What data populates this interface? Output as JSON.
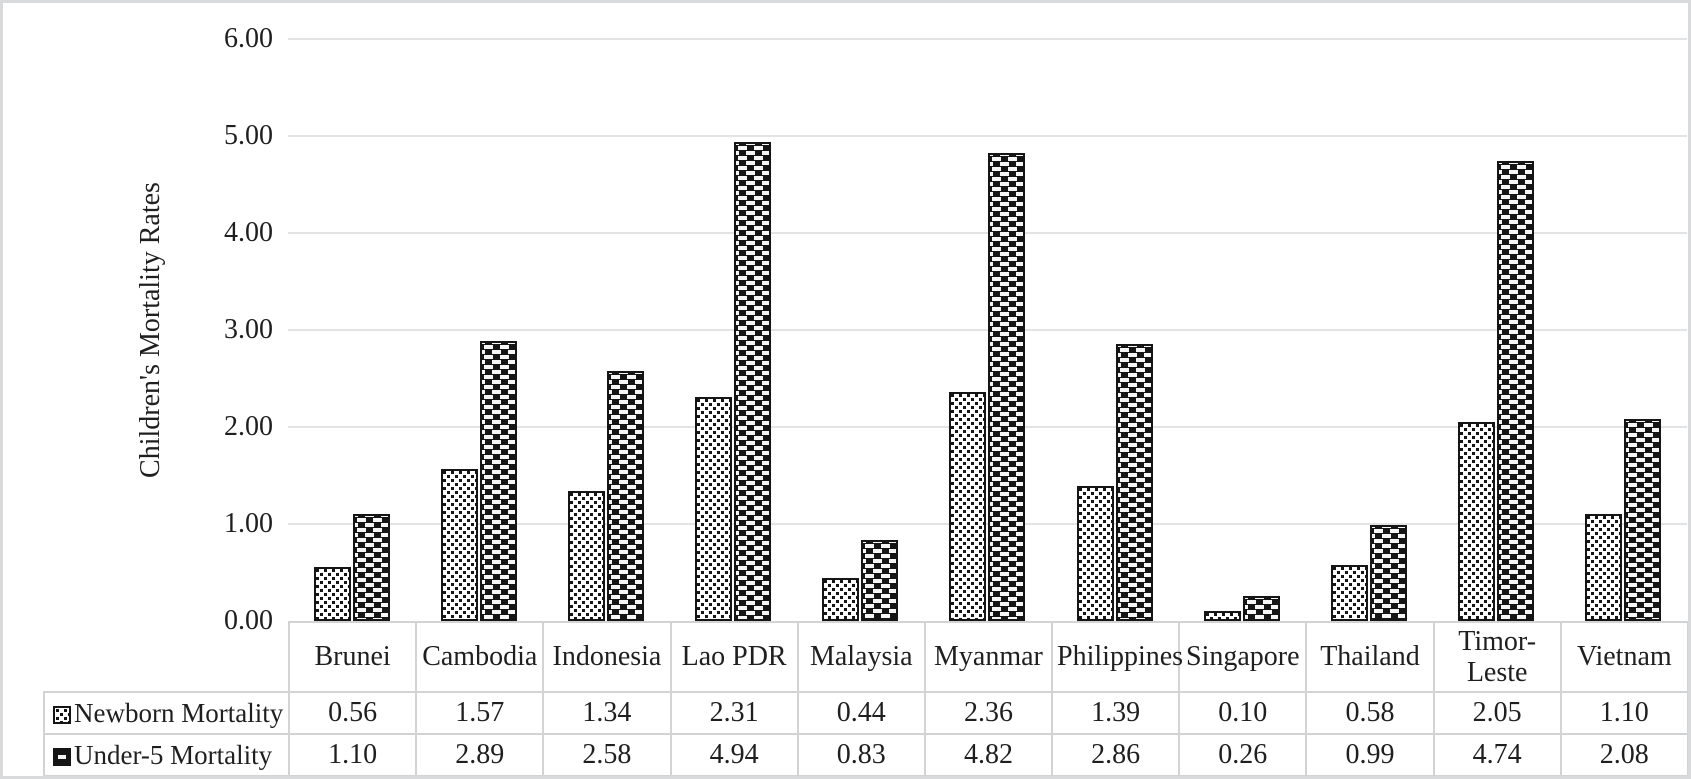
{
  "chart_data": {
    "type": "bar",
    "title": "",
    "ylabel": "Children's Mortality Rates",
    "xlabel": "",
    "categories": [
      "Brunei",
      "Cambodia",
      "Indonesia",
      "Lao PDR",
      "Malaysia",
      "Myanmar",
      "Philippines",
      "Singapore",
      "Thailand",
      "Timor-Leste",
      "Vietnam"
    ],
    "series": [
      {
        "name": "Newborn Mortality",
        "pattern": "black-dots-on-white",
        "values": [
          0.56,
          1.57,
          1.34,
          2.31,
          0.44,
          2.36,
          1.39,
          0.1,
          0.58,
          2.05,
          1.1
        ],
        "display": [
          "0.56",
          "1.57",
          "1.34",
          "2.31",
          "0.44",
          "2.36",
          "1.39",
          "0.10",
          "0.58",
          "2.05",
          "1.10"
        ]
      },
      {
        "name": "Under-5 Mortality",
        "pattern": "white-dashes-on-black",
        "values": [
          1.1,
          2.89,
          2.58,
          4.94,
          0.83,
          4.82,
          2.86,
          0.26,
          0.99,
          4.74,
          2.08
        ],
        "display": [
          "1.10",
          "2.89",
          "2.58",
          "4.94",
          "0.83",
          "4.82",
          "2.86",
          "0.26",
          "0.99",
          "4.74",
          "2.08"
        ]
      }
    ],
    "ylim": [
      0,
      6
    ],
    "ytick_interval": 1.0,
    "ytick_labels": [
      "0.00",
      "1.00",
      "2.00",
      "3.00",
      "4.00",
      "5.00",
      "6.00"
    ],
    "grid": true,
    "legend_position": "table-row-headers-below-chart",
    "value_format": "0.00"
  },
  "colors": {
    "bar_dark": "#151515",
    "gridline": "#e2e3e4",
    "table_border": "#d2d3d4",
    "frame_border": "#d9dadb",
    "text": "#1f1f1f",
    "background": "#ffffff"
  }
}
